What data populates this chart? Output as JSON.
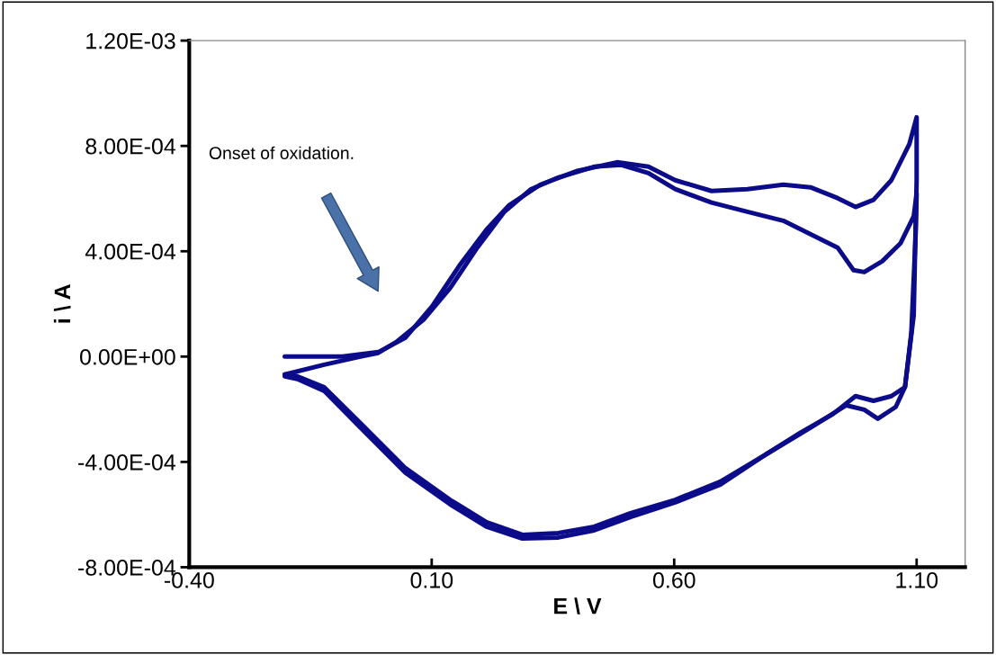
{
  "chart_data": {
    "type": "line",
    "xlabel": "E \\ V",
    "ylabel": "i \\ A",
    "xlim": [
      -0.4,
      1.2
    ],
    "ylim": [
      -0.0008,
      0.0012
    ],
    "xticks": [
      {
        "value": -0.4,
        "label": "-0.40"
      },
      {
        "value": 0.1,
        "label": "0.10"
      },
      {
        "value": 0.6,
        "label": "0.60"
      },
      {
        "value": 1.1,
        "label": "1.10"
      }
    ],
    "yticks": [
      {
        "value": -0.0008,
        "label": "-8.00E-04"
      },
      {
        "value": -0.0004,
        "label": "-4.00E-04"
      },
      {
        "value": 0,
        "label": "0.00E+00"
      },
      {
        "value": 0.0004,
        "label": "4.00E-04"
      },
      {
        "value": 0.0008,
        "label": "8.00E-04"
      },
      {
        "value": 0.0012,
        "label": "1.20E-03"
      }
    ],
    "grid": false,
    "legend": false,
    "marker": "none",
    "line_style": "solid",
    "annotations": [
      "Onset of oxidation."
    ],
    "series": [
      {
        "color": "#0c0c8a",
        "x": [
          -0.203,
          -0.084,
          -0.01,
          0.046,
          0.101,
          0.157,
          0.213,
          0.259,
          0.324,
          0.398,
          0.482,
          0.547,
          0.602,
          0.677,
          0.751,
          0.825,
          0.881,
          0.937,
          0.974,
          1.011,
          1.048,
          1.085,
          1.1,
          1.1,
          1.094,
          1.076,
          1.048,
          1.011,
          0.974,
          0.927,
          0.862,
          0.788,
          0.695,
          0.602,
          0.51,
          0.435,
          0.361,
          0.287,
          0.213,
          0.138,
          0.046,
          -0.047,
          -0.122,
          -0.177,
          -0.203
        ],
        "values": [
          0,
          0,
          1.7e-05,
          7.2e-05,
          0.000191,
          0.000345,
          0.000482,
          0.000574,
          0.000653,
          0.000704,
          0.000738,
          0.000721,
          0.00067,
          0.000629,
          0.000636,
          0.000653,
          0.000643,
          0.000602,
          0.000568,
          0.000595,
          0.00067,
          0.000807,
          0.000909,
          0.00067,
          0.000157,
          -0.000116,
          -0.00015,
          -0.000168,
          -0.00015,
          -0.000219,
          -0.000287,
          -0.000373,
          -0.000475,
          -0.000544,
          -0.000595,
          -0.000646,
          -0.00067,
          -0.000677,
          -0.000629,
          -0.000544,
          -0.000424,
          -0.000253,
          -0.000116,
          -7.5e-05,
          -6.8e-05
        ]
      },
      {
        "color": "#0c0c8a",
        "x": [
          -0.203,
          -0.122,
          -0.047,
          -0.01,
          0.027,
          0.083,
          0.138,
          0.194,
          0.25,
          0.305,
          0.361,
          0.435,
          0.491,
          0.547,
          0.602,
          0.677,
          0.751,
          0.825,
          0.881,
          0.937,
          0.97,
          0.992,
          1.029,
          1.067,
          1.094,
          1.1,
          1.098,
          1.089,
          1.076,
          1.057,
          1.02,
          0.992,
          0.955,
          0.881,
          0.788,
          0.695,
          0.602,
          0.51,
          0.435,
          0.361,
          0.287,
          0.213,
          0.138,
          0.046,
          -0.047,
          -0.122,
          -0.177,
          -0.203
        ],
        "values": [
          -6.8e-05,
          -3.1e-05,
          0,
          1.4e-05,
          5.5e-05,
          0.00014,
          0.00026,
          0.000414,
          0.00055,
          0.000636,
          0.00068,
          0.000721,
          0.000728,
          0.000697,
          0.000636,
          0.000585,
          0.00055,
          0.000516,
          0.000465,
          0.000414,
          0.000328,
          0.000321,
          0.000362,
          0.000431,
          0.000533,
          0.000619,
          0.000465,
          8.9e-05,
          -0.000116,
          -0.000191,
          -0.000236,
          -0.000202,
          -0.000185,
          -0.00027,
          -0.000373,
          -0.000486,
          -0.000554,
          -0.000609,
          -0.00066,
          -0.000687,
          -0.000691,
          -0.000646,
          -0.000561,
          -0.000441,
          -0.00027,
          -0.00013,
          -8.5e-05,
          -7.5e-05
        ]
      }
    ]
  }
}
